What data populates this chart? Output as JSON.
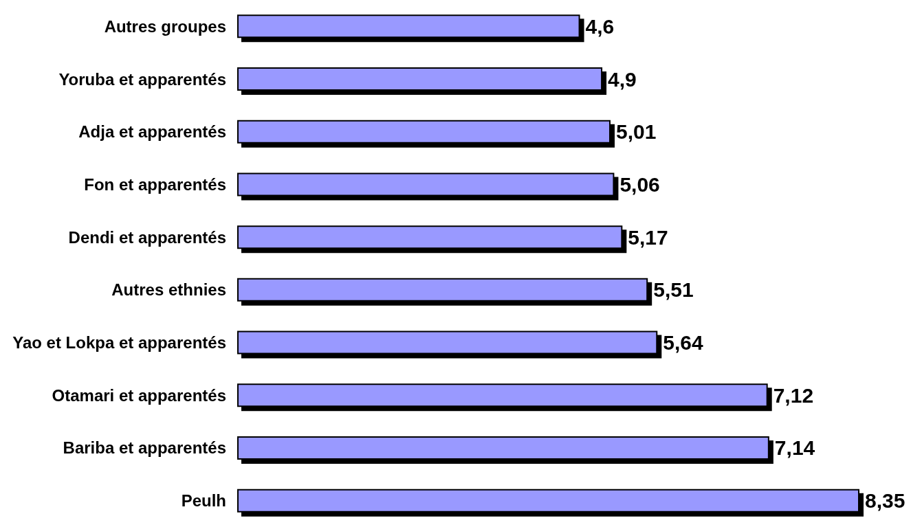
{
  "chart_data": {
    "type": "bar",
    "orientation": "horizontal",
    "categories": [
      "Autres groupes",
      "Yoruba et apparentés",
      "Adja et apparentés",
      "Fon et apparentés",
      "Dendi et apparentés",
      "Autres ethnies",
      "Yao et Lokpa et apparentés",
      "Otamari et apparentés",
      "Bariba et apparentés",
      "Peulh"
    ],
    "values": [
      4.6,
      4.9,
      5.01,
      5.06,
      5.17,
      5.51,
      5.64,
      7.12,
      7.14,
      8.35
    ],
    "value_labels": [
      "4,6",
      "4,9",
      "5,01",
      "5,06",
      "5,17",
      "5,51",
      "5,64",
      "7,12",
      "7,14",
      "8,35"
    ],
    "color": "#9999ff",
    "grid": false
  }
}
